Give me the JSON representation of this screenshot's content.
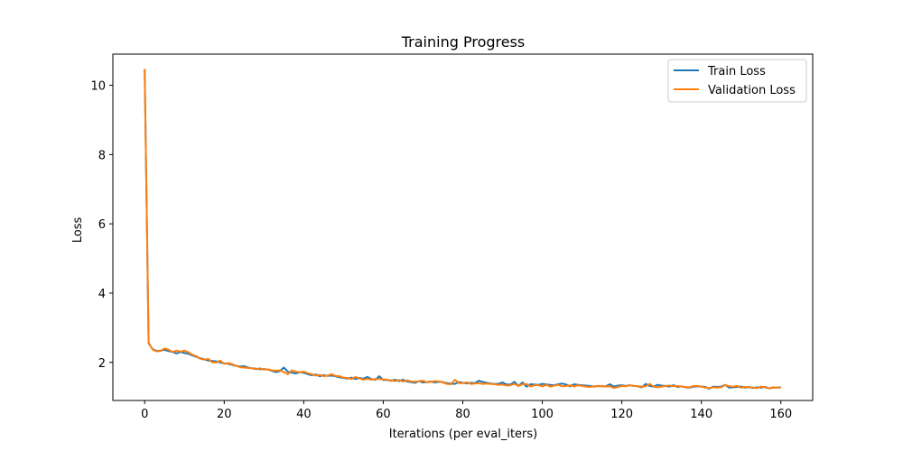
{
  "chart_data": {
    "type": "line",
    "title": "Training Progress",
    "xlabel": "Iterations (per eval_iters)",
    "ylabel": "Loss",
    "xlim": [
      -8,
      168
    ],
    "ylim": [
      0.9,
      10.9
    ],
    "xticks": [
      0,
      20,
      40,
      60,
      80,
      100,
      120,
      140,
      160
    ],
    "yticks": [
      2,
      4,
      6,
      8,
      10
    ],
    "grid": false,
    "legend_position": "top-right",
    "colors": {
      "train": "#1f77b4",
      "validation": "#ff7f0e"
    },
    "x": [
      0,
      1,
      2,
      3,
      4,
      5,
      6,
      7,
      8,
      9,
      10,
      11,
      12,
      13,
      14,
      15,
      16,
      17,
      18,
      19,
      20,
      21,
      22,
      23,
      24,
      25,
      26,
      27,
      28,
      29,
      30,
      31,
      32,
      33,
      34,
      35,
      36,
      37,
      38,
      39,
      40,
      41,
      42,
      43,
      44,
      45,
      46,
      47,
      48,
      49,
      50,
      51,
      52,
      53,
      54,
      55,
      56,
      57,
      58,
      59,
      60,
      61,
      62,
      63,
      64,
      65,
      66,
      67,
      68,
      69,
      70,
      71,
      72,
      73,
      74,
      75,
      76,
      77,
      78,
      79,
      80,
      81,
      82,
      83,
      84,
      85,
      86,
      87,
      88,
      89,
      90,
      91,
      92,
      93,
      94,
      95,
      96,
      97,
      98,
      99,
      100,
      101,
      102,
      103,
      104,
      105,
      106,
      107,
      108,
      109,
      110,
      111,
      112,
      113,
      114,
      115,
      116,
      117,
      118,
      119,
      120,
      121,
      122,
      123,
      124,
      125,
      126,
      127,
      128,
      129,
      130,
      131,
      132,
      133,
      134,
      135,
      136,
      137,
      138,
      139,
      140,
      141,
      142,
      143,
      144,
      145,
      146,
      147,
      148,
      149,
      150,
      151,
      152,
      153,
      154,
      155,
      156,
      157,
      158,
      159,
      160
    ],
    "series": [
      {
        "name": "Train Loss",
        "color": "#1f77b4",
        "values": [
          10.47,
          2.55,
          2.38,
          2.33,
          2.34,
          2.36,
          2.33,
          2.3,
          2.26,
          2.3,
          2.27,
          2.25,
          2.2,
          2.16,
          2.12,
          2.09,
          2.05,
          2.04,
          2.03,
          2.0,
          1.97,
          1.96,
          1.93,
          1.9,
          1.88,
          1.89,
          1.85,
          1.83,
          1.82,
          1.8,
          1.81,
          1.79,
          1.76,
          1.72,
          1.75,
          1.85,
          1.73,
          1.7,
          1.68,
          1.72,
          1.7,
          1.66,
          1.63,
          1.65,
          1.6,
          1.63,
          1.61,
          1.62,
          1.6,
          1.57,
          1.55,
          1.53,
          1.56,
          1.52,
          1.55,
          1.53,
          1.58,
          1.52,
          1.5,
          1.6,
          1.49,
          1.49,
          1.47,
          1.5,
          1.46,
          1.5,
          1.45,
          1.43,
          1.41,
          1.46,
          1.42,
          1.43,
          1.45,
          1.42,
          1.44,
          1.43,
          1.4,
          1.39,
          1.38,
          1.43,
          1.41,
          1.39,
          1.41,
          1.4,
          1.47,
          1.44,
          1.41,
          1.39,
          1.38,
          1.38,
          1.42,
          1.36,
          1.36,
          1.44,
          1.32,
          1.42,
          1.3,
          1.37,
          1.36,
          1.35,
          1.38,
          1.36,
          1.35,
          1.34,
          1.37,
          1.39,
          1.36,
          1.31,
          1.37,
          1.35,
          1.34,
          1.33,
          1.32,
          1.3,
          1.32,
          1.31,
          1.31,
          1.37,
          1.3,
          1.33,
          1.34,
          1.32,
          1.34,
          1.32,
          1.31,
          1.28,
          1.38,
          1.32,
          1.3,
          1.35,
          1.33,
          1.32,
          1.3,
          1.34,
          1.29,
          1.31,
          1.28,
          1.27,
          1.3,
          1.31,
          1.3,
          1.29,
          1.24,
          1.3,
          1.29,
          1.3,
          1.35,
          1.27,
          1.28,
          1.29,
          1.3,
          1.27,
          1.29,
          1.26,
          1.28,
          1.27,
          1.29,
          1.25,
          1.27,
          1.27,
          1.28
        ]
      },
      {
        "name": "Validation Loss",
        "color": "#ff7f0e",
        "values": [
          10.47,
          2.57,
          2.37,
          2.32,
          2.33,
          2.4,
          2.37,
          2.3,
          2.34,
          2.31,
          2.34,
          2.29,
          2.22,
          2.18,
          2.1,
          2.08,
          2.1,
          2.0,
          2.0,
          2.05,
          1.96,
          1.98,
          1.95,
          1.9,
          1.86,
          1.85,
          1.84,
          1.83,
          1.8,
          1.83,
          1.79,
          1.8,
          1.77,
          1.76,
          1.77,
          1.72,
          1.66,
          1.77,
          1.73,
          1.72,
          1.73,
          1.69,
          1.66,
          1.62,
          1.64,
          1.6,
          1.62,
          1.66,
          1.61,
          1.6,
          1.56,
          1.55,
          1.52,
          1.58,
          1.54,
          1.5,
          1.53,
          1.5,
          1.52,
          1.52,
          1.51,
          1.5,
          1.48,
          1.46,
          1.49,
          1.45,
          1.48,
          1.45,
          1.44,
          1.46,
          1.47,
          1.42,
          1.44,
          1.46,
          1.45,
          1.42,
          1.38,
          1.37,
          1.5,
          1.4,
          1.4,
          1.42,
          1.38,
          1.39,
          1.4,
          1.38,
          1.39,
          1.38,
          1.37,
          1.35,
          1.36,
          1.33,
          1.34,
          1.38,
          1.32,
          1.37,
          1.38,
          1.3,
          1.34,
          1.34,
          1.31,
          1.35,
          1.3,
          1.33,
          1.35,
          1.31,
          1.32,
          1.34,
          1.3,
          1.34,
          1.32,
          1.3,
          1.29,
          1.31,
          1.31,
          1.32,
          1.3,
          1.31,
          1.26,
          1.29,
          1.32,
          1.31,
          1.34,
          1.32,
          1.31,
          1.3,
          1.31,
          1.38,
          1.3,
          1.28,
          1.3,
          1.32,
          1.33,
          1.31,
          1.32,
          1.3,
          1.29,
          1.28,
          1.32,
          1.32,
          1.3,
          1.27,
          1.26,
          1.28,
          1.27,
          1.28,
          1.35,
          1.31,
          1.3,
          1.32,
          1.27,
          1.29,
          1.28,
          1.27,
          1.26,
          1.3,
          1.28,
          1.25,
          1.28,
          1.27,
          1.27
        ]
      }
    ]
  }
}
